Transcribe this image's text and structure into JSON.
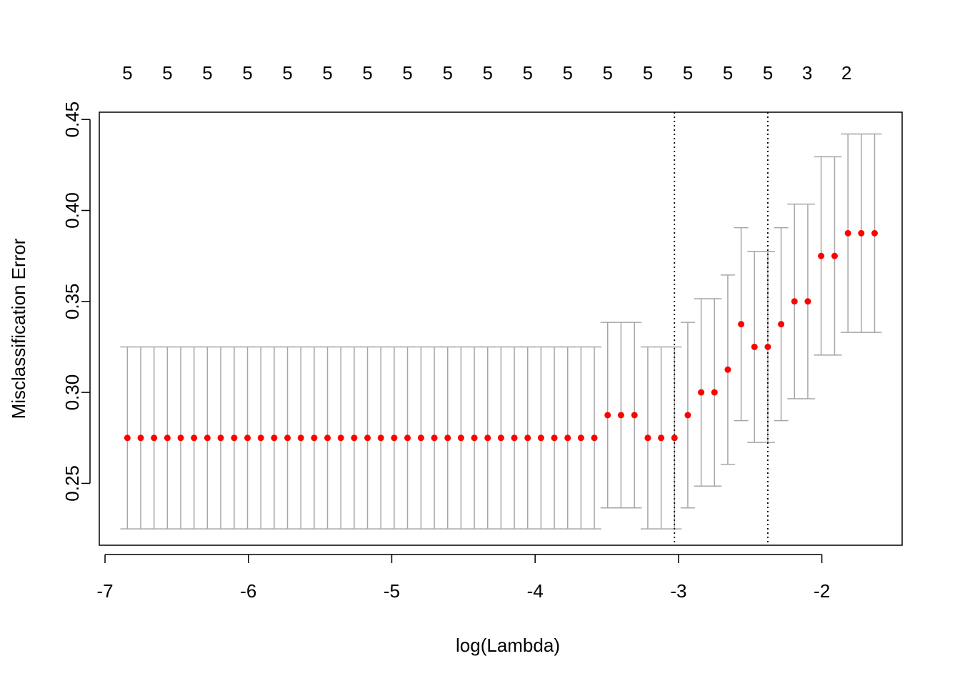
{
  "chart_data": {
    "type": "scatter",
    "title": "",
    "xlabel": "log(Lambda)",
    "ylabel": "Misclassification Error",
    "xlim": [
      -7.04,
      -1.44
    ],
    "ylim": [
      0.216,
      0.454
    ],
    "xticks": [
      -7,
      -6,
      -5,
      -4,
      -3,
      -2
    ],
    "xtick_labels": [
      "-7",
      "-6",
      "-5",
      "-4",
      "-3",
      "-2"
    ],
    "yticks": [
      0.25,
      0.3,
      0.35,
      0.4,
      0.45
    ],
    "ytick_labels": [
      "0.25",
      "0.30",
      "0.35",
      "0.40",
      "0.45"
    ],
    "top_axis": {
      "positions": [
        -6.844,
        -6.565,
        -6.286,
        -6.006,
        -5.727,
        -5.448,
        -5.169,
        -4.89,
        -4.61,
        -4.331,
        -4.052,
        -3.773,
        -3.494,
        -3.214,
        -2.935,
        -2.656,
        -2.377,
        -2.102,
        -1.828
      ],
      "labels": [
        "5",
        "5",
        "5",
        "5",
        "5",
        "5",
        "5",
        "5",
        "5",
        "5",
        "5",
        "5",
        "5",
        "5",
        "5",
        "5",
        "5",
        "3",
        "2"
      ]
    },
    "vlines": [
      -3.028,
      -2.377
    ],
    "grid": false,
    "series": [
      {
        "x": [
          -6.844,
          -6.751,
          -6.658,
          -6.565,
          -6.472,
          -6.379,
          -6.286,
          -6.193,
          -6.099,
          -6.006,
          -5.913,
          -5.82,
          -5.727,
          -5.634,
          -5.541,
          -5.448,
          -5.355,
          -5.262,
          -5.169,
          -5.076,
          -4.983,
          -4.89,
          -4.796,
          -4.703,
          -4.61,
          -4.517,
          -4.424,
          -4.331,
          -4.238,
          -4.145,
          -4.052,
          -3.959,
          -3.866,
          -3.773,
          -3.68,
          -3.587,
          -3.494,
          -3.401,
          -3.307,
          -3.214,
          -3.121,
          -3.028,
          -2.935,
          -2.842,
          -2.749,
          -2.656,
          -2.563,
          -2.47,
          -2.377,
          -2.284,
          -2.191,
          -2.098,
          -2.005,
          -1.911,
          -1.818,
          -1.725,
          -1.632
        ],
        "y": [
          0.275,
          0.275,
          0.275,
          0.275,
          0.275,
          0.275,
          0.275,
          0.275,
          0.275,
          0.275,
          0.275,
          0.275,
          0.275,
          0.275,
          0.275,
          0.275,
          0.275,
          0.275,
          0.275,
          0.275,
          0.275,
          0.275,
          0.275,
          0.275,
          0.275,
          0.275,
          0.275,
          0.275,
          0.275,
          0.275,
          0.275,
          0.275,
          0.275,
          0.275,
          0.275,
          0.275,
          0.2875,
          0.2875,
          0.2875,
          0.275,
          0.275,
          0.275,
          0.2875,
          0.3,
          0.3,
          0.3125,
          0.3375,
          0.325,
          0.325,
          0.3375,
          0.35,
          0.35,
          0.375,
          0.375,
          0.3875,
          0.3875,
          0.3875
        ],
        "lower": [
          0.225,
          0.225,
          0.225,
          0.225,
          0.225,
          0.225,
          0.225,
          0.225,
          0.225,
          0.225,
          0.225,
          0.225,
          0.225,
          0.225,
          0.225,
          0.225,
          0.225,
          0.225,
          0.225,
          0.225,
          0.225,
          0.225,
          0.225,
          0.225,
          0.225,
          0.225,
          0.225,
          0.225,
          0.225,
          0.225,
          0.225,
          0.225,
          0.225,
          0.225,
          0.225,
          0.225,
          0.2365,
          0.2365,
          0.2365,
          0.225,
          0.225,
          0.225,
          0.2365,
          0.2485,
          0.2485,
          0.2605,
          0.2845,
          0.2725,
          0.2725,
          0.2845,
          0.2965,
          0.2965,
          0.3205,
          0.3205,
          0.333,
          0.333,
          0.333
        ],
        "upper": [
          0.325,
          0.325,
          0.325,
          0.325,
          0.325,
          0.325,
          0.325,
          0.325,
          0.325,
          0.325,
          0.325,
          0.325,
          0.325,
          0.325,
          0.325,
          0.325,
          0.325,
          0.325,
          0.325,
          0.325,
          0.325,
          0.325,
          0.325,
          0.325,
          0.325,
          0.325,
          0.325,
          0.325,
          0.325,
          0.325,
          0.325,
          0.325,
          0.325,
          0.325,
          0.325,
          0.325,
          0.3385,
          0.3385,
          0.3385,
          0.325,
          0.325,
          0.325,
          0.3385,
          0.3515,
          0.3515,
          0.3645,
          0.3905,
          0.3775,
          0.3775,
          0.3905,
          0.4035,
          0.4035,
          0.4295,
          0.4295,
          0.442,
          0.442,
          0.442
        ]
      }
    ],
    "colors": {
      "points": "#ff0000",
      "error_bars": "#a6a6a6",
      "axes": "#000000",
      "vlines": "#000000"
    }
  }
}
